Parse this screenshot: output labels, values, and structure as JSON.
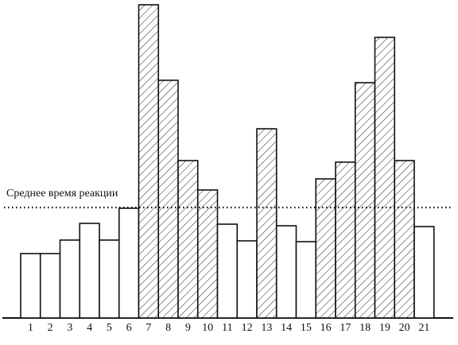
{
  "chart_data": {
    "type": "bar",
    "categories": [
      "1",
      "2",
      "3",
      "4",
      "5",
      "6",
      "7",
      "8",
      "9",
      "10",
      "11",
      "12",
      "13",
      "14",
      "15",
      "16",
      "17",
      "18",
      "19",
      "20",
      "21"
    ],
    "values": [
      81,
      81,
      98,
      119,
      98,
      138,
      394,
      299,
      198,
      161,
      118,
      97,
      238,
      116,
      96,
      175,
      196,
      296,
      353,
      198,
      115
    ],
    "hatched": [
      false,
      false,
      false,
      false,
      false,
      false,
      true,
      true,
      true,
      true,
      false,
      false,
      true,
      false,
      false,
      true,
      true,
      true,
      true,
      true,
      false
    ],
    "ylim": [
      0,
      400
    ],
    "mean_line": {
      "label": "Среднее время реакции",
      "value": 139
    }
  }
}
